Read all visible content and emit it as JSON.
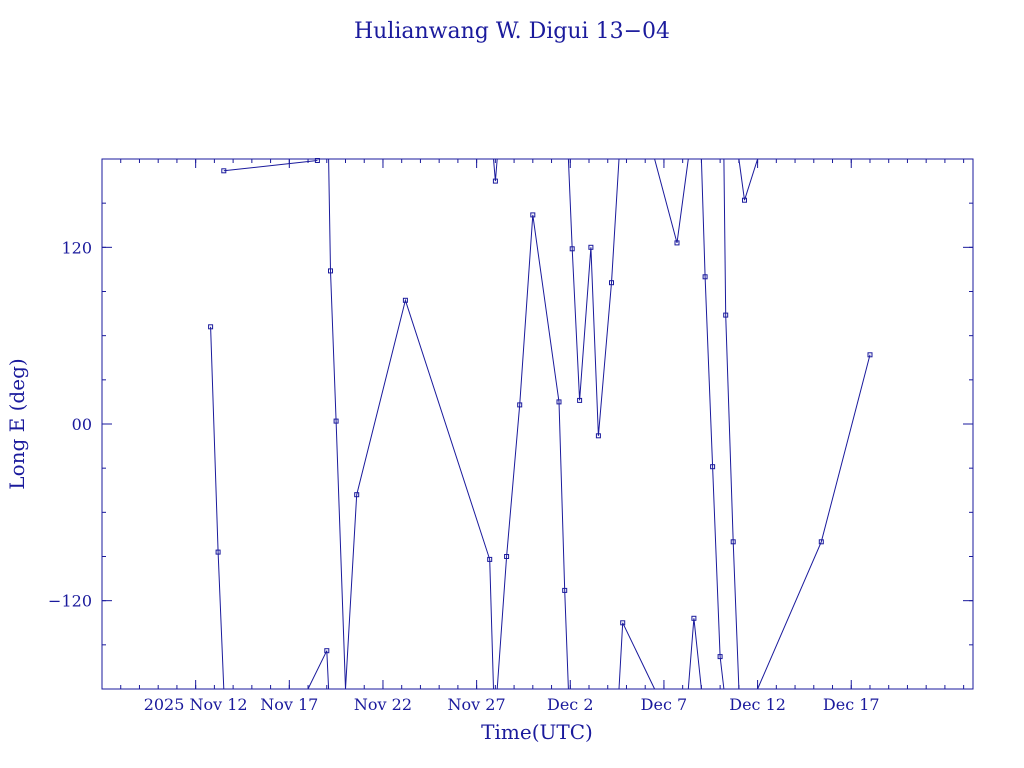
{
  "chart_data": {
    "type": "line",
    "title": "Hulianwang W. Digui 13−04",
    "xlabel": "Time(UTC)",
    "ylabel": "Long E (deg)",
    "x_start": "2025-11-05",
    "xlim_days": [
      0,
      46.5
    ],
    "ylim": [
      -180,
      180
    ],
    "x_ticks": [
      {
        "day": 5,
        "label": "2025 Nov 12"
      },
      {
        "day": 10,
        "label": "Nov 17"
      },
      {
        "day": 15,
        "label": "Nov 22"
      },
      {
        "day": 20,
        "label": "Nov 27"
      },
      {
        "day": 25,
        "label": "Dec  2"
      },
      {
        "day": 30,
        "label": "Dec  7"
      },
      {
        "day": 35,
        "label": "Dec 12"
      },
      {
        "day": 40,
        "label": "Dec 17"
      }
    ],
    "y_ticks": [
      {
        "value": 120,
        "label": "120"
      },
      {
        "value": 0,
        "label": "00"
      },
      {
        "value": -120,
        "label": "−120"
      }
    ],
    "segments": [
      [
        [
          5.8,
          66
        ],
        [
          6.2,
          -87
        ],
        [
          6.5,
          -180
        ]
      ],
      [
        [
          6.5,
          172
        ],
        [
          11.5,
          179
        ]
      ],
      [
        [
          11.0,
          -180
        ],
        [
          12.0,
          -154
        ],
        [
          12.1,
          -180
        ]
      ],
      [
        [
          12.1,
          180
        ],
        [
          12.2,
          104
        ],
        [
          12.5,
          2
        ],
        [
          13.0,
          -180
        ]
      ],
      [
        [
          13.0,
          -180
        ],
        [
          13.6,
          -48
        ],
        [
          16.2,
          84
        ],
        [
          20.7,
          -92
        ],
        [
          20.9,
          -180
        ]
      ],
      [
        [
          20.9,
          180
        ],
        [
          21.0,
          165
        ],
        [
          21.1,
          180
        ]
      ],
      [
        [
          21.1,
          -180
        ],
        [
          21.6,
          -90
        ],
        [
          22.3,
          13
        ],
        [
          23.0,
          142
        ],
        [
          24.4,
          15
        ],
        [
          24.7,
          -113
        ],
        [
          24.9,
          -180
        ]
      ],
      [
        [
          24.9,
          180
        ],
        [
          25.1,
          119
        ],
        [
          25.5,
          16
        ],
        [
          26.1,
          120
        ],
        [
          26.5,
          -8
        ],
        [
          27.2,
          96
        ],
        [
          27.6,
          180
        ]
      ],
      [
        [
          27.6,
          -180
        ],
        [
          27.8,
          -135
        ],
        [
          29.5,
          -180
        ]
      ],
      [
        [
          29.5,
          180
        ],
        [
          30.7,
          123
        ],
        [
          31.3,
          180
        ]
      ],
      [
        [
          31.3,
          -180
        ],
        [
          31.6,
          -132
        ],
        [
          32.0,
          -180
        ]
      ],
      [
        [
          32.0,
          180
        ],
        [
          32.2,
          100
        ],
        [
          32.6,
          -29
        ],
        [
          33.0,
          -158
        ],
        [
          33.2,
          -180
        ]
      ],
      [
        [
          33.2,
          180
        ],
        [
          33.3,
          74
        ],
        [
          33.7,
          -80
        ],
        [
          34.0,
          -180
        ]
      ],
      [
        [
          34.0,
          180
        ],
        [
          34.3,
          152
        ],
        [
          35.0,
          180
        ]
      ],
      [
        [
          35.0,
          -180
        ],
        [
          38.4,
          -80
        ],
        [
          41.0,
          47
        ]
      ]
    ]
  }
}
